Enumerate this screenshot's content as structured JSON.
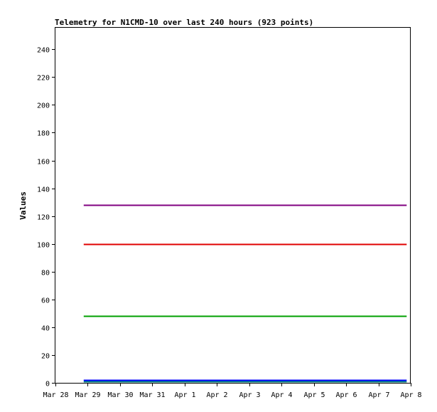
{
  "chart_data": {
    "type": "line",
    "title": "Telemetry for N1CMD-10 over last 240 hours (923 points)",
    "xlabel": "",
    "ylabel": "Values",
    "x_ticks": [
      "Mar 28",
      "Mar 29",
      "Mar 30",
      "Mar 31",
      "Apr 1",
      "Apr 2",
      "Apr 3",
      "Apr 4",
      "Apr 5",
      "Apr 6",
      "Apr 7",
      "Apr 8"
    ],
    "x_range": [
      "Mar 28",
      "Apr 8"
    ],
    "x": [
      "Mar 28 21:00",
      "Apr 7 21:00"
    ],
    "ylim": [
      0,
      256
    ],
    "y_ticks": [
      0,
      20,
      40,
      60,
      80,
      100,
      120,
      140,
      160,
      180,
      200,
      220,
      240
    ],
    "grid": false,
    "series": [
      {
        "values": [
          128,
          128
        ],
        "color": "#800080"
      },
      {
        "values": [
          100,
          100
        ],
        "color": "#e00000"
      },
      {
        "values": [
          48,
          48
        ],
        "color": "#00a000"
      },
      {
        "values": [
          2,
          2
        ],
        "color": "#0000ff"
      },
      {
        "values": [
          1,
          1
        ],
        "color": "#008080"
      }
    ]
  }
}
